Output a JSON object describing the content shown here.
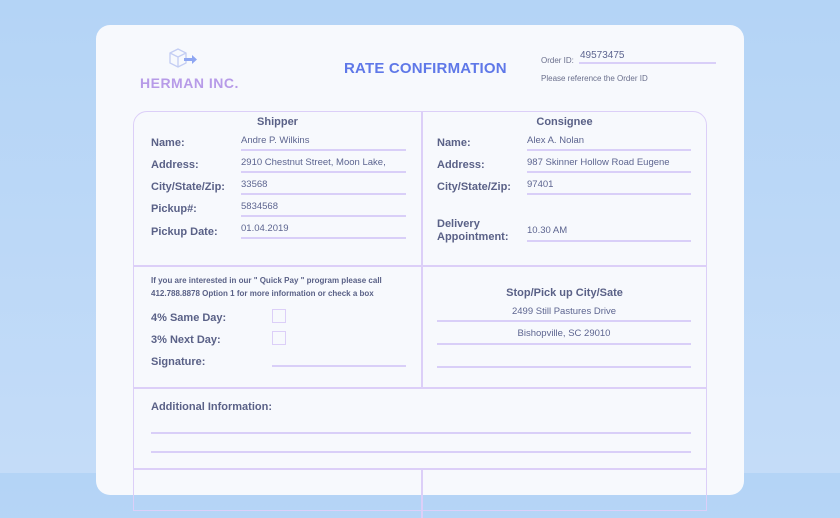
{
  "header": {
    "company": "HERMAN INC.",
    "title": "RATE CONFIRMATION",
    "order_id_label": "Order ID:",
    "order_id": "49573475",
    "order_note": "Please reference the Order ID"
  },
  "shipper": {
    "heading": "Shipper",
    "fields": [
      {
        "label": "Name:",
        "value": "Andre P. Wilkins"
      },
      {
        "label": "Address:",
        "value": "2910 Chestnut Street, Moon Lake,"
      },
      {
        "label": "City/State/Zip:",
        "value": "33568"
      },
      {
        "label": "Pickup#:",
        "value": "5834568"
      },
      {
        "label": "Pickup Date:",
        "value": "01.04.2019"
      }
    ]
  },
  "consignee": {
    "heading": "Consignee",
    "fields": [
      {
        "label": "Name:",
        "value": "Alex A. Nolan"
      },
      {
        "label": "Address:",
        "value": "987 Skinner Hollow Road Eugene"
      },
      {
        "label": "City/State/Zip:",
        "value": "97401"
      },
      {
        "label": "Delivery Appointment:",
        "value": "10.30 AM"
      }
    ]
  },
  "quickpay": {
    "note_line1": "If you are interested in our \" Quick Pay \" program please call",
    "note_line2": "412.788.8878 Option 1 for more information or check a box",
    "same_day": "4% Same Day:",
    "next_day": "3% Next Day:",
    "signature": "Signature:"
  },
  "stop": {
    "heading": "Stop/Pick up City/Sate",
    "line1": "2499 Still Pastures Drive",
    "line2": "Bishopville, SC 29010",
    "line3": ""
  },
  "additional": {
    "label": "Additional Information:"
  }
}
